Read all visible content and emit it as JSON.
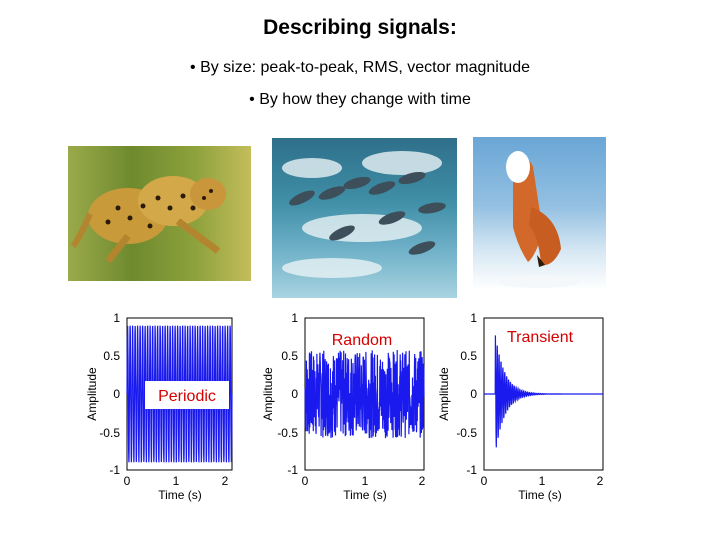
{
  "slide": {
    "title": "Describing signals:",
    "bullets": [
      "• By size: peak-to-peak, RMS, vector magnitude",
      "• By how they change with time"
    ]
  },
  "colors": {
    "signal": "#1a1aee",
    "label_red": "#d40000"
  },
  "photos": [
    "cheetah-photo",
    "dolphins-photo",
    "fox-photo"
  ],
  "chart_data": [
    {
      "type": "line",
      "label": "Periodic",
      "xlabel": "Time (s)",
      "ylabel": "Amplitude",
      "xlim": [
        0,
        2.1
      ],
      "ylim": [
        -1,
        1
      ],
      "x_ticks": [
        "0",
        "1",
        "2"
      ],
      "y_ticks": [
        "1",
        "0.5",
        "0",
        "-0.5",
        "-1"
      ],
      "signal": "sinusoid, ~20 cycles/s, amplitude ~0.9, from 0 to 2.1 s"
    },
    {
      "type": "line",
      "label": "Random",
      "xlabel": "Time (s)",
      "ylabel": "Amplitude",
      "xlim": [
        0,
        2.1
      ],
      "ylim": [
        -1,
        1
      ],
      "x_ticks": [
        "0",
        "1",
        "2"
      ],
      "y_ticks": [
        "1",
        "0.5",
        "0",
        "-0.5",
        "-1"
      ],
      "signal": "random noise, amplitude up to ~0.6"
    },
    {
      "type": "line",
      "label": "Transient",
      "xlabel": "Time (s)",
      "ylabel": "Amplitude",
      "xlim": [
        0,
        2.1
      ],
      "ylim": [
        -1,
        1
      ],
      "x_ticks": [
        "0",
        "1",
        "2"
      ],
      "y_ticks": [
        "1",
        "0.5",
        "0",
        "-0.5",
        "-1"
      ],
      "signal": "decaying oscillation starting at ~0.2 s, peak ~0.75, near zero after ~0.8 s"
    }
  ]
}
